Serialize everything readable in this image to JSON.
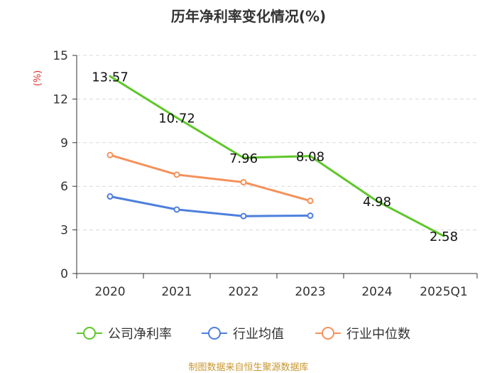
{
  "chart_data": {
    "type": "line",
    "title": "历年净利率变化情况(%)",
    "ylabel": "(%)",
    "categories": [
      "2020",
      "2021",
      "2022",
      "2023",
      "2024",
      "2025Q1"
    ],
    "ylim": [
      0,
      15
    ],
    "yticks": [
      0,
      3,
      6,
      9,
      12,
      15
    ],
    "grid": true,
    "legend_position": "bottom",
    "series": [
      {
        "name": "公司净利率",
        "color": "#5ec72a",
        "values": [
          13.57,
          10.72,
          7.96,
          8.08,
          4.98,
          2.58
        ],
        "labels": [
          "13.57",
          "10.72",
          "7.96",
          "8.08",
          "4.98",
          "2.58"
        ],
        "show_labels": true,
        "show_markers": false
      },
      {
        "name": "行业均值",
        "color": "#4e7fdd",
        "values": [
          5.3,
          4.4,
          3.95,
          3.98,
          null,
          null
        ],
        "show_labels": false,
        "show_markers": true
      },
      {
        "name": "行业中位数",
        "color": "#f5915a",
        "values": [
          8.15,
          6.8,
          6.28,
          5.0,
          null,
          null
        ],
        "show_labels": false,
        "show_markers": true
      }
    ],
    "source": "制图数据来自恒生聚源数据库"
  }
}
